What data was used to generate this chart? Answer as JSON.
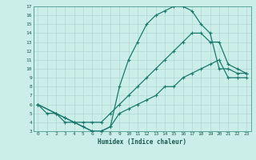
{
  "xlabel": "Humidex (Indice chaleur)",
  "bg_color": "#cceee8",
  "line_color": "#1a7a6e",
  "grid_color": "#b0d8d4",
  "xlim": [
    -0.5,
    23.5
  ],
  "ylim": [
    3,
    17
  ],
  "xtick_labels": [
    "0",
    "1",
    "2",
    "3",
    "4",
    "5",
    "6",
    "7",
    "8",
    "9",
    "10",
    "11",
    "12",
    "13",
    "14",
    "15",
    "16",
    "17",
    "18",
    "19",
    "20",
    "21",
    "22",
    "23"
  ],
  "ytick_labels": [
    "3",
    "4",
    "5",
    "6",
    "7",
    "8",
    "9",
    "10",
    "11",
    "12",
    "13",
    "14",
    "15",
    "16",
    "17"
  ],
  "line1_x": [
    0,
    1,
    2,
    3,
    4,
    5,
    6,
    7,
    8,
    9,
    10,
    11,
    12,
    13,
    14,
    15,
    16,
    17,
    18,
    19,
    20,
    21,
    22,
    23
  ],
  "line1_y": [
    6,
    5,
    5,
    4,
    4,
    3.5,
    3,
    3,
    3.5,
    8,
    11,
    13,
    15,
    16,
    16.5,
    17,
    17,
    16.5,
    15,
    14,
    10,
    10,
    9.5,
    9.5
  ],
  "line2_x": [
    0,
    2,
    3,
    4,
    5,
    6,
    7,
    8,
    9,
    10,
    11,
    12,
    13,
    14,
    15,
    16,
    17,
    18,
    19,
    20,
    21,
    22,
    23
  ],
  "line2_y": [
    6,
    5,
    4.5,
    4,
    4,
    4,
    4,
    5,
    6,
    7,
    8,
    9,
    10,
    11,
    12,
    13,
    14,
    14,
    13,
    13,
    10.5,
    10,
    9.5
  ],
  "line3_x": [
    0,
    2,
    3,
    4,
    5,
    6,
    7,
    8,
    9,
    10,
    11,
    12,
    13,
    14,
    15,
    16,
    17,
    18,
    19,
    20,
    21,
    22,
    23
  ],
  "line3_y": [
    6,
    5,
    4.5,
    4,
    3.5,
    3,
    3,
    3.5,
    5,
    5.5,
    6,
    6.5,
    7,
    8,
    8,
    9,
    9.5,
    10,
    10.5,
    11,
    9,
    9,
    9
  ],
  "marker": "+"
}
